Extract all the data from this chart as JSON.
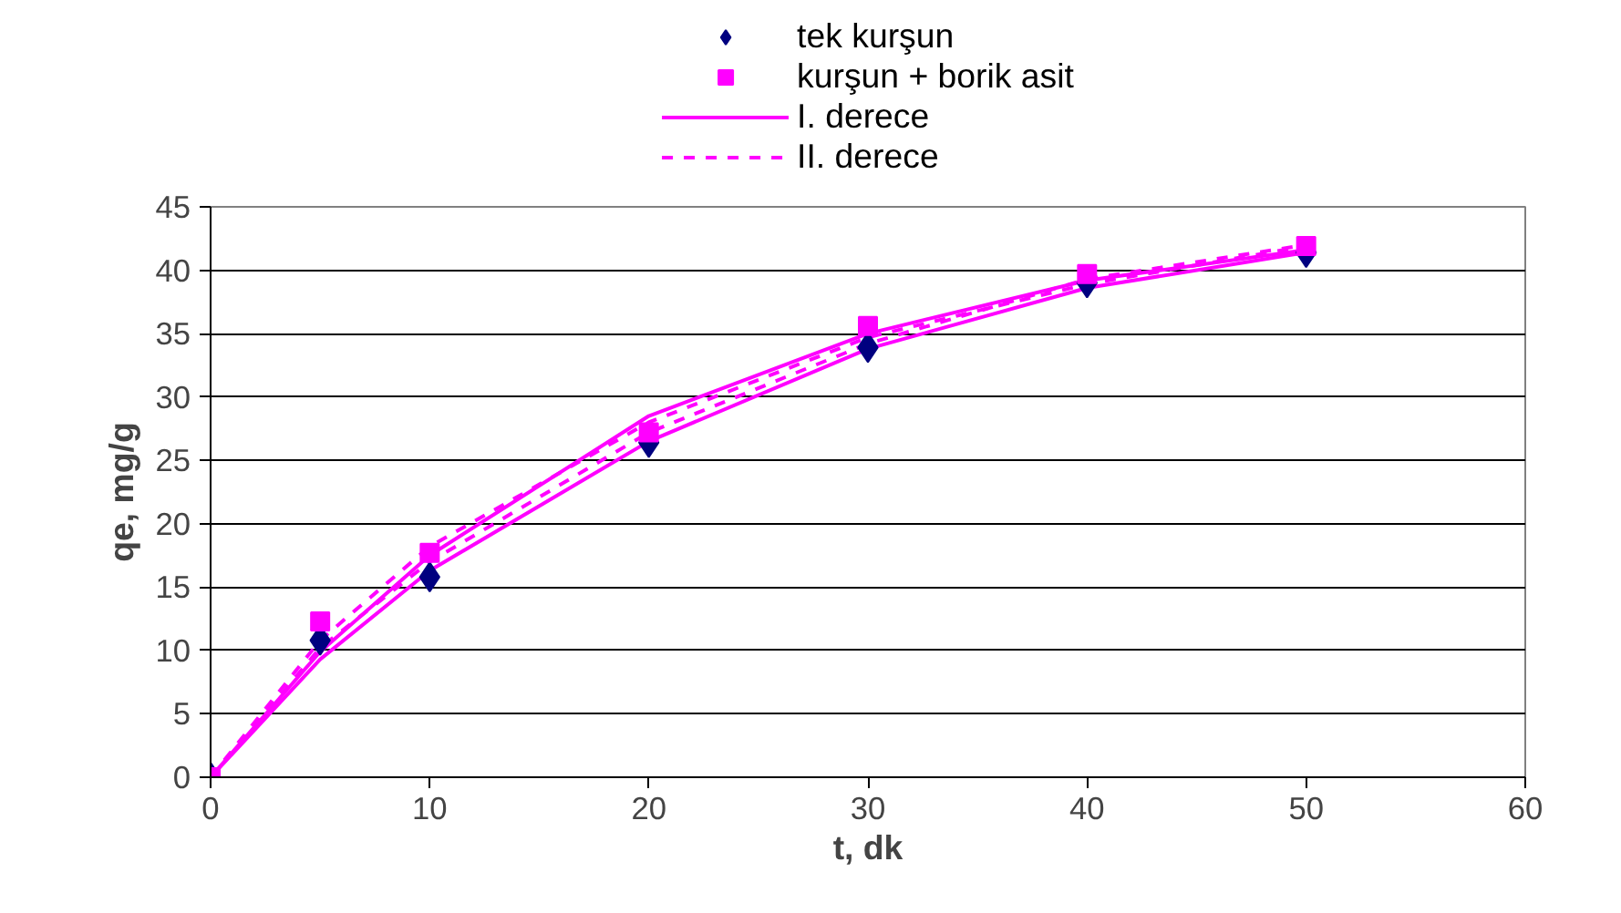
{
  "chart_data": {
    "type": "scatter",
    "xlabel": "t, dk",
    "ylabel": "qe, mg/g",
    "x": [
      0,
      5,
      10,
      20,
      30,
      40,
      50
    ],
    "series": [
      {
        "name": "tek kurşun",
        "color": "#000080",
        "marker": "diamond",
        "values": [
          null,
          10.8,
          15.8,
          26.4,
          33.9,
          39,
          41.4
        ]
      },
      {
        "name": "kurşun + borik asit",
        "color": "#ff00ff",
        "marker": "square",
        "values": [
          0,
          12.3,
          17.7,
          27.2,
          35.6,
          39.7,
          41.9
        ]
      },
      {
        "name": "I. derece",
        "type": "line",
        "line_style": "solid",
        "marker": "none",
        "color": "#ff00ff",
        "values": [
          0,
          9.3,
          16.3,
          26.5,
          33.8,
          38.6,
          41.4
        ]
      },
      {
        "type": "line",
        "line_style": "solid",
        "marker": "none",
        "color": "#ff00ff",
        "values": [
          0,
          9.9,
          17.5,
          28.5,
          35,
          39.2,
          41.6
        ]
      },
      {
        "name": "II. derece",
        "type": "line",
        "line_style": "dashed",
        "marker": "none",
        "color": "#ff00ff",
        "values": [
          0,
          10.8,
          18.2,
          28,
          34.7,
          38.9,
          41.9
        ]
      },
      {
        "type": "line",
        "line_style": "dashed",
        "marker": "none",
        "color": "#ff00ff",
        "values": [
          0,
          10.2,
          17,
          27.2,
          34.2,
          39.3,
          42
        ]
      }
    ],
    "xlim": [
      0,
      60
    ],
    "xticks": [
      0,
      10,
      20,
      30,
      40,
      50,
      60
    ],
    "ylim": [
      0,
      45
    ],
    "yticks": [
      0,
      5,
      10,
      15,
      20,
      25,
      30,
      35,
      40,
      45
    ],
    "grid": "y",
    "legend": "top"
  }
}
